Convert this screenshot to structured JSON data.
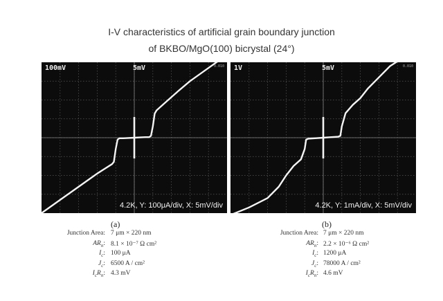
{
  "title_line1": "I-V characteristics of artificial grain boundary junction",
  "title_line2": "of BKBO/MgO(100) bicrystal (24°)",
  "chart_data": [
    {
      "type": "line",
      "panel_label": "(a)",
      "screen_top_left": "100mV",
      "screen_top_center": "5mV",
      "screen_top_right": "0.010",
      "screen_bottom": "4.2K,  Y: 100μA/div,  X: 5mV/div",
      "grid": true,
      "x_divisions": 10,
      "y_divisions": 8,
      "x": [
        -25,
        -20,
        -15,
        -10,
        -8,
        -6,
        -5.5,
        -5,
        -4.5,
        -4,
        -3,
        0,
        3,
        4,
        4.5,
        5,
        5.5,
        6,
        8,
        10,
        12,
        15,
        20,
        25
      ],
      "y": [
        -400,
        -330,
        -260,
        -190,
        -165,
        -140,
        -128,
        -60,
        -10,
        -3,
        -3,
        0,
        3,
        3,
        10,
        60,
        128,
        145,
        180,
        215,
        250,
        300,
        370,
        440
      ],
      "params": [
        {
          "name": "Junction Area:",
          "value": "7 μm × 220 nm"
        },
        {
          "name": "AR",
          "sub": "n",
          "suffix": ":",
          "value": "8.1 × 10⁻⁷ Ω cm²"
        },
        {
          "name": "I",
          "sub": "c",
          "suffix": ":",
          "value": "100 μA"
        },
        {
          "name": "J",
          "sub": "c",
          "suffix": ":",
          "value": "6500 A / cm²"
        },
        {
          "name": "I",
          "sub": "c",
          "name2": "R",
          "sub2": "n",
          "suffix": ":",
          "value": "4.3 mV"
        }
      ]
    },
    {
      "type": "line",
      "panel_label": "(b)",
      "screen_top_left": "1V",
      "screen_top_center": "5mV",
      "screen_top_right": "0.010",
      "screen_bottom": "4.2K,  Y: 1mA/div,  X: 5mV/div",
      "grid": true,
      "x_divisions": 10,
      "y_divisions": 8,
      "x": [
        -25,
        -20,
        -15,
        -12,
        -10,
        -8,
        -6,
        -5,
        -4.6,
        -4,
        0,
        4,
        4.6,
        5,
        6,
        8,
        10,
        12,
        15,
        18,
        22
      ],
      "y": [
        -4.1,
        -3.7,
        -3.2,
        -2.6,
        -2.0,
        -1.5,
        -1.15,
        -0.6,
        -0.1,
        -0.05,
        0,
        0.05,
        0.1,
        0.6,
        1.3,
        1.75,
        2.1,
        2.6,
        3.2,
        3.8,
        4.3
      ],
      "params": [
        {
          "name": "Junction Area:",
          "value": "7 μm × 220 nm"
        },
        {
          "name": "AR",
          "sub": "n",
          "suffix": ":",
          "value": "2.2 × 10⁻⁶ Ω cm²"
        },
        {
          "name": "I",
          "sub": "c",
          "suffix": ":",
          "value": "1200 μA"
        },
        {
          "name": "J",
          "sub": "c",
          "suffix": ":",
          "value": "78000 A / cm²"
        },
        {
          "name": "I",
          "sub": "c",
          "name2": "R",
          "sub2": "n",
          "suffix": ":",
          "value": "4.6 mV"
        }
      ]
    }
  ],
  "colors": {
    "screen_background": "#0c0c0c",
    "grid": "#5a5a5a",
    "trace": "#f4f4f4",
    "text": "#222222"
  }
}
